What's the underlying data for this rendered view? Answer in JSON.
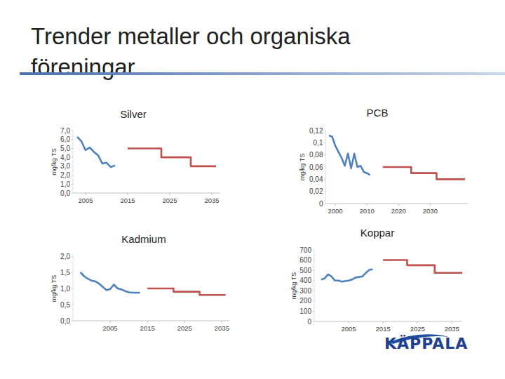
{
  "page": {
    "title": "Trender metaller och organiska föreningar",
    "logo": "KÄPPALA"
  },
  "chart_data": [
    {
      "type": "line",
      "title": "Silver",
      "y_label": "mg/kg TS",
      "xlim": [
        2002,
        2037
      ],
      "xticks": [
        2005,
        2015,
        2025,
        2035
      ],
      "ylim": [
        0,
        7
      ],
      "yticks": [
        {
          "value": 0,
          "label": "0,0"
        },
        {
          "value": 1,
          "label": "1,0"
        },
        {
          "value": 2,
          "label": "2,0"
        },
        {
          "value": 3,
          "label": "3,0"
        },
        {
          "value": 4,
          "label": "4,0"
        },
        {
          "value": 5,
          "label": "5,0"
        },
        {
          "value": 6,
          "label": "6,0"
        },
        {
          "value": 7,
          "label": "7,0"
        }
      ],
      "grid": false,
      "series": [
        {
          "color": "#4f81bd",
          "x": [
            2003,
            2004,
            2005,
            2006,
            2007,
            2008,
            2009,
            2010,
            2011,
            2012
          ],
          "values": [
            6.3,
            5.8,
            4.8,
            5.1,
            4.6,
            4.2,
            3.3,
            3.4,
            2.9,
            3.1
          ]
        },
        {
          "color": "#c0504d",
          "x": [
            2015,
            2023,
            2023,
            2030,
            2030,
            2036
          ],
          "values": [
            5.0,
            5.0,
            4.0,
            4.0,
            3.0,
            3.0
          ]
        }
      ]
    },
    {
      "type": "line",
      "title": "PCB",
      "y_label": "mg/kg TS",
      "xlim": [
        1997,
        2042
      ],
      "xticks": [
        2000,
        2010,
        2020,
        2030
      ],
      "ylim": [
        0,
        0.12
      ],
      "yticks": [
        0,
        {
          "value": 0.02,
          "label": "0,02"
        },
        {
          "value": 0.04,
          "label": "0,04"
        },
        {
          "value": 0.06,
          "label": "0,06"
        },
        {
          "value": 0.08,
          "label": "0,08"
        },
        {
          "value": 0.1,
          "label": "0,1"
        },
        {
          "value": 0.12,
          "label": "0,12"
        }
      ],
      "grid": false,
      "series": [
        {
          "color": "#4f81bd",
          "x": [
            1998,
            1999,
            2000,
            2001,
            2002,
            2003,
            2004,
            2005,
            2006,
            2007,
            2008,
            2009,
            2010,
            2011
          ],
          "values": [
            0.112,
            0.11,
            0.095,
            0.085,
            0.075,
            0.062,
            0.082,
            0.058,
            0.082,
            0.06,
            0.062,
            0.052,
            0.05,
            0.047
          ]
        },
        {
          "color": "#c0504d",
          "x": [
            2015,
            2024,
            2024,
            2032,
            2032,
            2041
          ],
          "values": [
            0.06,
            0.06,
            0.05,
            0.05,
            0.04,
            0.04
          ]
        }
      ]
    },
    {
      "type": "line",
      "title": "Kadmium",
      "y_label": "mg/kg TS",
      "xlim": [
        1995,
        2037
      ],
      "xticks": [
        2005,
        2015,
        2025,
        2035
      ],
      "ylim": [
        0,
        2
      ],
      "yticks": [
        {
          "value": 0,
          "label": "0,0"
        },
        {
          "value": 0.5,
          "label": "0,5"
        },
        {
          "value": 1,
          "label": "1,0"
        },
        {
          "value": 1.5,
          "label": "1,5"
        },
        {
          "value": 2,
          "label": "2,0"
        }
      ],
      "grid": false,
      "series": [
        {
          "color": "#4f81bd",
          "x": [
            1997,
            1998,
            1999,
            2000,
            2001,
            2002,
            2003,
            2004,
            2005,
            2006,
            2007,
            2008,
            2009,
            2010,
            2011,
            2012,
            2013
          ],
          "values": [
            1.5,
            1.38,
            1.3,
            1.24,
            1.22,
            1.15,
            1.05,
            0.95,
            0.98,
            1.12,
            1.0,
            0.97,
            0.92,
            0.88,
            0.87,
            0.87,
            0.87
          ]
        },
        {
          "color": "#c0504d",
          "x": [
            2015,
            2022,
            2022,
            2029,
            2029,
            2036
          ],
          "values": [
            1.0,
            1.0,
            0.9,
            0.9,
            0.8,
            0.8
          ]
        }
      ]
    },
    {
      "type": "line",
      "title": "Koppar",
      "y_label": "mg/kg TS",
      "xlim": [
        1995,
        2038
      ],
      "xticks": [
        2005,
        2015,
        2025,
        2035
      ],
      "ylim": [
        0,
        700
      ],
      "yticks": [
        0,
        100,
        200,
        300,
        400,
        500,
        600,
        700
      ],
      "grid": false,
      "series": [
        {
          "color": "#4f81bd",
          "x": [
            1997,
            1998,
            1999,
            2000,
            2001,
            2002,
            2003,
            2004,
            2005,
            2006,
            2007,
            2008,
            2009,
            2010,
            2011,
            2012
          ],
          "values": [
            410,
            420,
            460,
            440,
            400,
            400,
            390,
            395,
            400,
            410,
            430,
            435,
            440,
            475,
            505,
            510
          ]
        },
        {
          "color": "#c0504d",
          "x": [
            2015,
            2022,
            2022,
            2030,
            2030,
            2038
          ],
          "values": [
            600,
            600,
            550,
            550,
            475,
            475
          ]
        }
      ]
    }
  ]
}
